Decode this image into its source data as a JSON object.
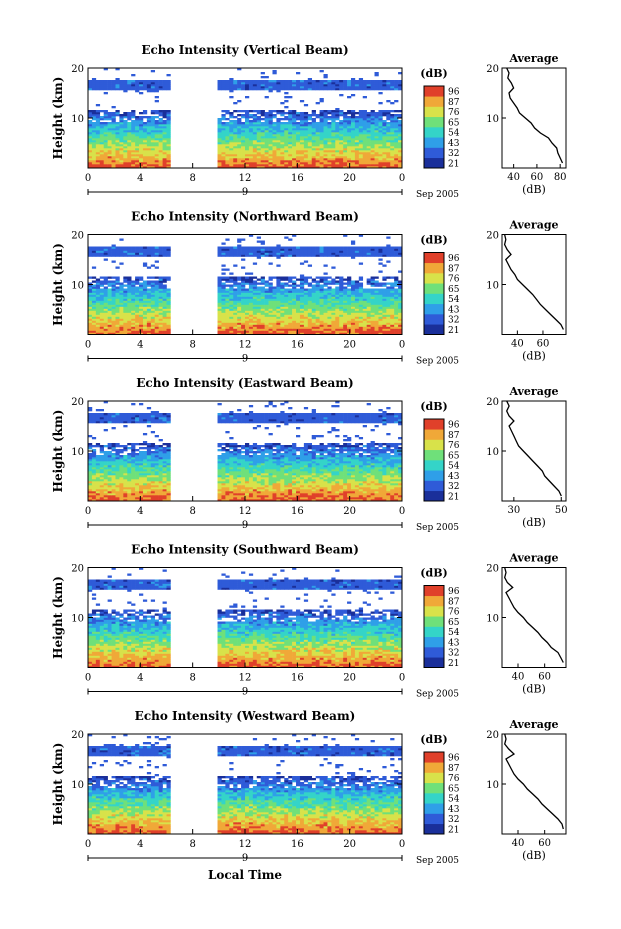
{
  "figure": {
    "xlabel": "Local Time",
    "colorbar_unit": "(dB)",
    "colorbar_ticks": [
      "96",
      "87",
      "76",
      "65",
      "54",
      "43",
      "32",
      "21"
    ],
    "height_axis_label": "Height (km)",
    "height_ticks": [
      "20",
      "10"
    ],
    "time_ticks": [
      "0",
      "4",
      "8",
      "12",
      "16",
      "20",
      "0"
    ],
    "day_marker": "9",
    "month_year": "Sep 2005",
    "avg_title": "Average",
    "avg_unit": "(dB)",
    "colors": {
      "colorscale": [
        "#1a2f9a",
        "#2f5bd8",
        "#2f9fe8",
        "#34d4c8",
        "#6fe07a",
        "#d8e24a",
        "#f0a838",
        "#e0402a"
      ],
      "background": "#ffffff",
      "axis": "#000000"
    }
  },
  "chart_data": [
    {
      "type": "heatmap",
      "title": "Echo Intensity (Vertical Beam)",
      "x_range_hours": [
        0,
        24
      ],
      "y_range_km": [
        0,
        20
      ],
      "data_gap_hours": [
        6.2,
        10
      ],
      "avg_xticks": [
        "40",
        "60",
        "80"
      ],
      "avg_xlim": [
        30,
        85
      ],
      "avg_profile": {
        "height_km": [
          1,
          2,
          3,
          4,
          5,
          6,
          7,
          8,
          9,
          10,
          11,
          12,
          13,
          14,
          15,
          16,
          17,
          18,
          19,
          20
        ],
        "value_db": [
          82,
          80,
          78,
          77,
          73,
          70,
          63,
          58,
          55,
          50,
          45,
          43,
          40,
          37,
          36,
          40,
          38,
          35,
          36,
          34
        ]
      }
    },
    {
      "type": "heatmap",
      "title": "Echo Intensity (Northward Beam)",
      "x_range_hours": [
        0,
        24
      ],
      "y_range_km": [
        0,
        20
      ],
      "data_gap_hours": [
        6.2,
        10
      ],
      "avg_xticks": [
        "40",
        "60"
      ],
      "avg_xlim": [
        28,
        78
      ],
      "avg_profile": {
        "height_km": [
          1,
          2,
          3,
          4,
          5,
          6,
          7,
          8,
          9,
          10,
          11,
          12,
          13,
          14,
          15,
          16,
          17,
          18,
          19,
          20
        ],
        "value_db": [
          76,
          74,
          70,
          66,
          62,
          58,
          55,
          52,
          48,
          44,
          40,
          38,
          35,
          33,
          31,
          35,
          32,
          30,
          31,
          30
        ]
      }
    },
    {
      "type": "heatmap",
      "title": "Echo Intensity (Eastward Beam)",
      "x_range_hours": [
        0,
        24
      ],
      "y_range_km": [
        0,
        20
      ],
      "data_gap_hours": [
        6.2,
        10
      ],
      "avg_xticks": [
        "30",
        "50"
      ],
      "avg_xlim": [
        25,
        52
      ],
      "avg_profile": {
        "height_km": [
          1,
          2,
          3,
          4,
          5,
          6,
          7,
          8,
          9,
          10,
          11,
          12,
          13,
          14,
          15,
          16,
          17,
          18,
          19,
          20
        ],
        "value_db": [
          50,
          49,
          47,
          45,
          43,
          42,
          40,
          38,
          36,
          34,
          32,
          31,
          30,
          29,
          28,
          30,
          28,
          27,
          28,
          27
        ]
      }
    },
    {
      "type": "heatmap",
      "title": "Echo Intensity (Southward Beam)",
      "x_range_hours": [
        0,
        24
      ],
      "y_range_km": [
        0,
        20
      ],
      "data_gap_hours": [
        6.2,
        10
      ],
      "avg_xticks": [
        "40",
        "60"
      ],
      "avg_xlim": [
        28,
        76
      ],
      "avg_profile": {
        "height_km": [
          1,
          2,
          3,
          4,
          5,
          6,
          7,
          8,
          9,
          10,
          11,
          12,
          13,
          14,
          15,
          16,
          17,
          18,
          19,
          20
        ],
        "value_db": [
          74,
          72,
          70,
          65,
          62,
          58,
          55,
          51,
          47,
          44,
          40,
          37,
          35,
          33,
          31,
          36,
          32,
          30,
          31,
          30
        ]
      }
    },
    {
      "type": "heatmap",
      "title": "Echo Intensity (Westward Beam)",
      "x_range_hours": [
        0,
        24
      ],
      "y_range_km": [
        0,
        20
      ],
      "data_gap_hours": [
        6.2,
        10
      ],
      "avg_xticks": [
        "40",
        "60"
      ],
      "avg_xlim": [
        28,
        76
      ],
      "avg_profile": {
        "height_km": [
          1,
          2,
          3,
          4,
          5,
          6,
          7,
          8,
          9,
          10,
          11,
          12,
          13,
          14,
          15,
          16,
          17,
          18,
          19,
          20
        ],
        "value_db": [
          74,
          73,
          70,
          66,
          62,
          58,
          55,
          51,
          47,
          44,
          40,
          37,
          35,
          33,
          31,
          37,
          33,
          30,
          31,
          30
        ]
      }
    }
  ]
}
